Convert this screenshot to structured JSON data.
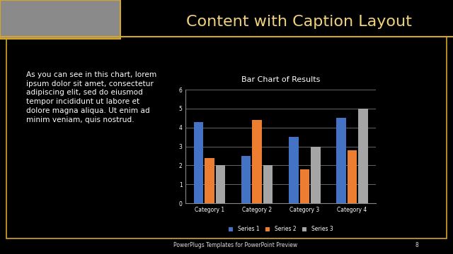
{
  "slide": {
    "title": "Content with Caption Layout",
    "caption": "As you can see in this chart, lorem ipsum dolor sit amet, consectetur adipiscing elit, sed do eiusmod tempor incididunt ut labore et dolore magna aliqua. Ut enim ad minim veniam, quis nostrud.",
    "footer": "PowerPlugs Templates for PowerPoint Preview",
    "page_number": 8
  },
  "chart_data": {
    "type": "bar",
    "title": "Bar Chart of Results",
    "categories": [
      "Category 1",
      "Category 2",
      "Category 3",
      "Category 4"
    ],
    "series": [
      {
        "name": "Series 1",
        "color": "#4472c4",
        "values": [
          4.3,
          2.5,
          3.5,
          4.5
        ]
      },
      {
        "name": "Series 2",
        "color": "#ed7d31",
        "values": [
          2.4,
          4.4,
          1.8,
          2.8
        ]
      },
      {
        "name": "Series 3",
        "color": "#a5a5a5",
        "values": [
          2.0,
          2.0,
          3.0,
          5.0
        ]
      }
    ],
    "ylim": [
      0,
      6
    ],
    "yticks": [
      0,
      1,
      2,
      3,
      4,
      5,
      6
    ],
    "grid": true,
    "legend": "lower center"
  }
}
